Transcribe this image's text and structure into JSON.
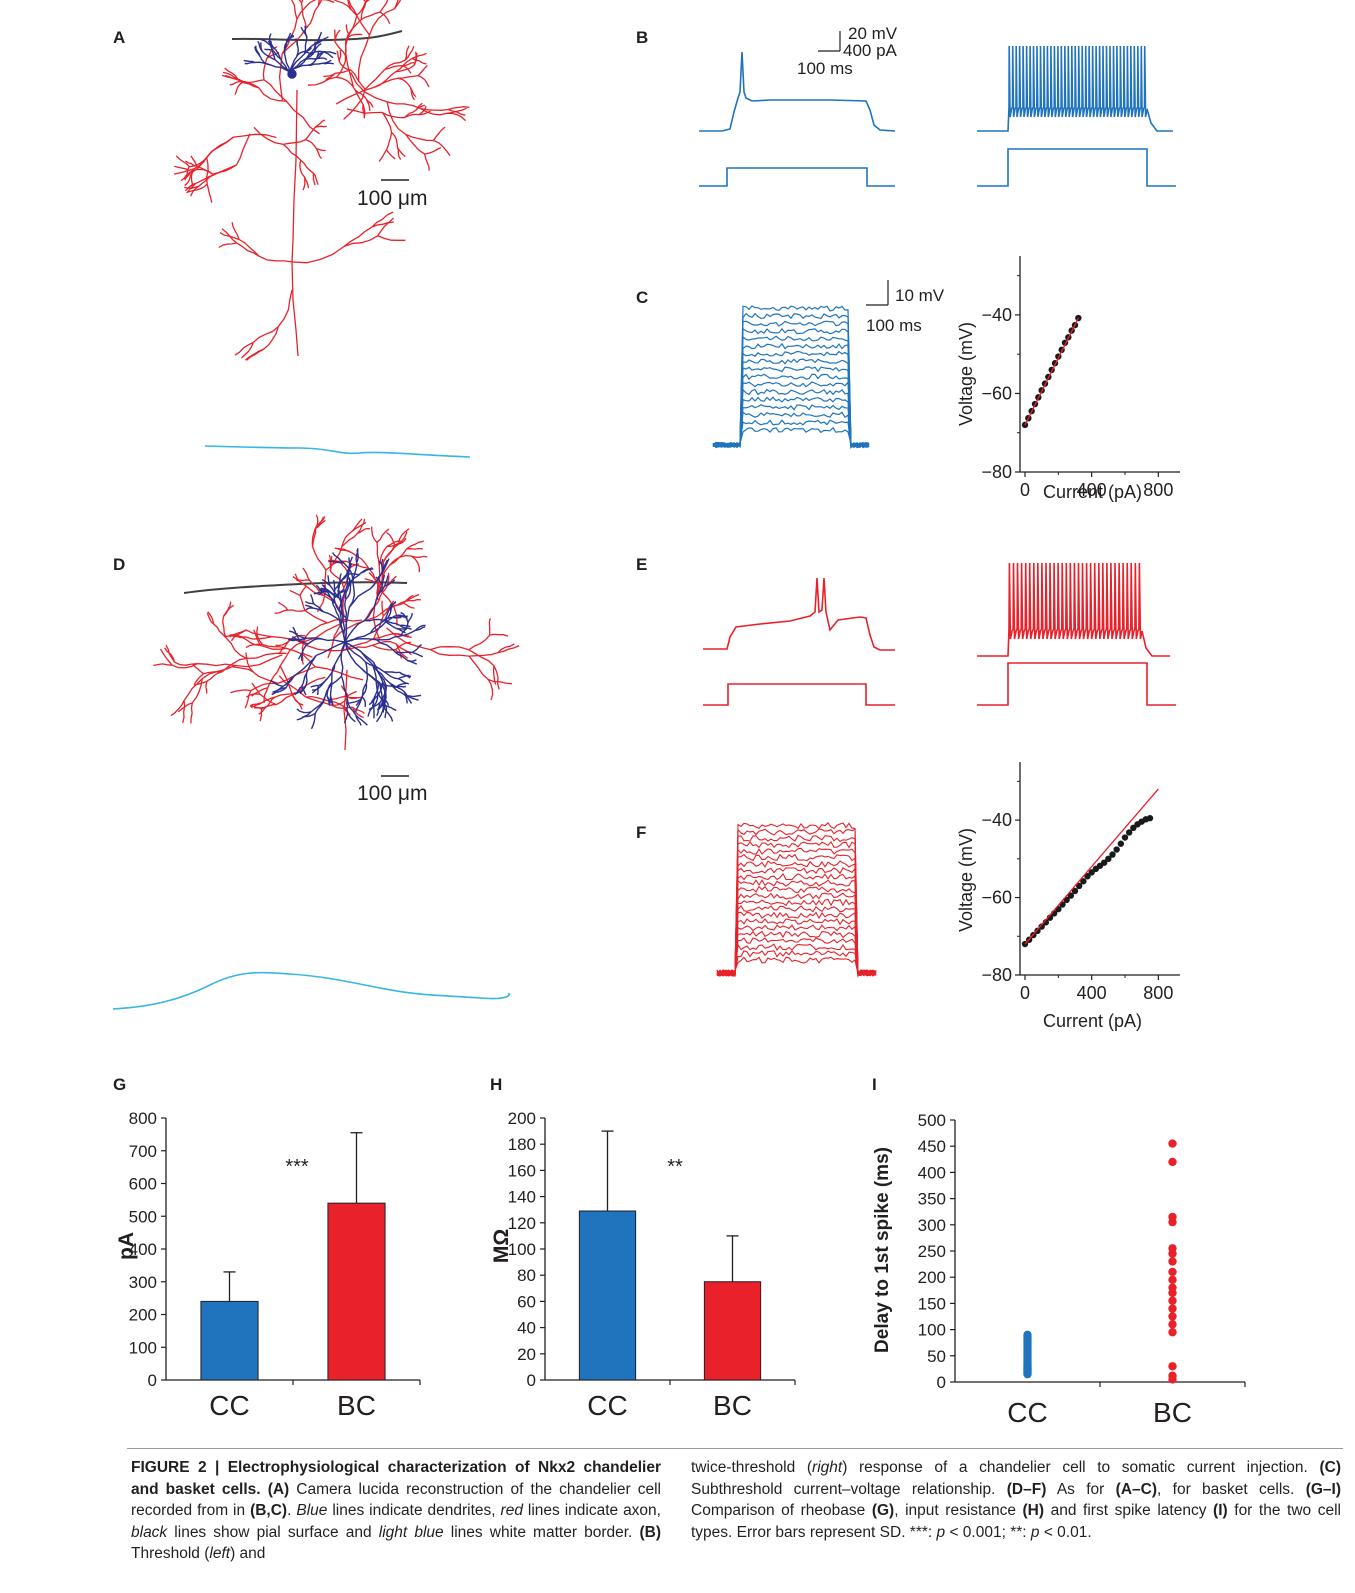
{
  "panel_labels": {
    "A": "A",
    "B": "B",
    "C": "C",
    "D": "D",
    "E": "E",
    "F": "F",
    "G": "G",
    "H": "H",
    "I": "I"
  },
  "scale_bars": {
    "anatomy_A": "100 μm",
    "anatomy_D": "100 μm",
    "trace_B_v": "20 mV",
    "trace_B_i": "400 pA",
    "trace_B_t": "100 ms",
    "trace_C_v": "10 mV",
    "trace_C_t": "100 ms"
  },
  "colors": {
    "dendrite": "#2b2f8f",
    "axon": "#e8212a",
    "pia": "#404040",
    "white_matter": "#35b6e6",
    "chandelier": "#1f74bd",
    "basket": "#e8212a",
    "fit_line": "#e8212a",
    "iv_points": "#1a1a1a"
  },
  "chart_data": [
    {
      "id": "C-iv",
      "type": "scatter",
      "title": "",
      "xlabel": "Current (pA)",
      "ylabel": "Voltage (mV)",
      "xlim": [
        -30,
        930
      ],
      "ylim": [
        -80,
        -25
      ],
      "xticks": [
        "0",
        "400",
        "800"
      ],
      "yticks": [
        "−40",
        "−60",
        "−80"
      ],
      "points_color": "#1a1a1a",
      "x": [
        0,
        20,
        40,
        60,
        80,
        100,
        120,
        140,
        160,
        180,
        200,
        220,
        240,
        260,
        280,
        300,
        320
      ],
      "y": [
        -68.0,
        -66.3,
        -64.5,
        -62.7,
        -61.0,
        -59.2,
        -57.5,
        -55.8,
        -54.0,
        -52.3,
        -50.6,
        -48.9,
        -47.1,
        -45.7,
        -44.0,
        -42.6,
        -40.8
      ],
      "fit": {
        "x": [
          0,
          320
        ],
        "y": [
          -68.0,
          -40.8
        ]
      }
    },
    {
      "id": "F-iv",
      "type": "scatter",
      "title": "",
      "xlabel": "Current (pA)",
      "ylabel": "Voltage (mV)",
      "xlim": [
        -30,
        930
      ],
      "ylim": [
        -80,
        -25
      ],
      "xticks": [
        "0",
        "400",
        "800"
      ],
      "yticks": [
        "−40",
        "−60",
        "−80"
      ],
      "points_color": "#1a1a1a",
      "x": [
        0,
        25,
        50,
        75,
        100,
        125,
        150,
        175,
        200,
        225,
        250,
        275,
        300,
        325,
        350,
        375,
        400,
        425,
        450,
        475,
        500,
        525,
        550,
        575,
        600,
        625,
        650,
        675,
        700,
        725,
        750
      ],
      "y": [
        -72.0,
        -70.9,
        -69.7,
        -68.6,
        -67.5,
        -66.4,
        -65.2,
        -64.1,
        -63.0,
        -61.8,
        -60.6,
        -59.5,
        -58.3,
        -57.0,
        -55.8,
        -54.5,
        -53.5,
        -52.6,
        -51.8,
        -51.0,
        -50.0,
        -48.9,
        -47.6,
        -46.1,
        -44.5,
        -43.2,
        -42.0,
        -41.1,
        -40.4,
        -39.8,
        -39.5
      ],
      "fit": {
        "x": [
          0,
          800
        ],
        "y": [
          -72.0,
          -32.0
        ]
      }
    },
    {
      "id": "G",
      "type": "bar",
      "title": "",
      "xlabel": "",
      "ylabel": "pA",
      "ylim": [
        0,
        800
      ],
      "yticks": [
        "0",
        "100",
        "200",
        "300",
        "400",
        "500",
        "600",
        "700",
        "800"
      ],
      "categories": [
        "CC",
        "BC"
      ],
      "values": [
        240,
        540
      ],
      "errors": [
        90,
        215
      ],
      "bar_colors": [
        "#1f74bd",
        "#e8212a"
      ],
      "annotation": "***"
    },
    {
      "id": "H",
      "type": "bar",
      "title": "",
      "xlabel": "",
      "ylabel": "MΩ",
      "ylim": [
        0,
        200
      ],
      "yticks": [
        "0",
        "20",
        "40",
        "60",
        "80",
        "100",
        "120",
        "140",
        "160",
        "180",
        "200"
      ],
      "categories": [
        "CC",
        "BC"
      ],
      "values": [
        129,
        75
      ],
      "errors": [
        61,
        35
      ],
      "bar_colors": [
        "#1f74bd",
        "#e8212a"
      ],
      "annotation": "**"
    },
    {
      "id": "I",
      "type": "scatter",
      "title": "",
      "xlabel": "",
      "ylabel": "Delay to 1st spike (ms)",
      "ylim": [
        0,
        500
      ],
      "yticks": [
        "0",
        "50",
        "100",
        "150",
        "200",
        "250",
        "300",
        "350",
        "400",
        "450",
        "500"
      ],
      "categories": [
        "CC",
        "BC"
      ],
      "series": [
        {
          "category": "CC",
          "color": "#1f74bd",
          "values": [
            15,
            18,
            20,
            22,
            24,
            26,
            28,
            30,
            33,
            36,
            40,
            45,
            50,
            55,
            60,
            65,
            70,
            75,
            80,
            85,
            90
          ]
        },
        {
          "category": "BC",
          "color": "#e8212a",
          "values": [
            5,
            12,
            30,
            95,
            110,
            125,
            140,
            155,
            170,
            180,
            195,
            210,
            230,
            245,
            255,
            305,
            315,
            420,
            455
          ]
        }
      ]
    }
  ],
  "caption": {
    "left": {
      "label": "FIGURE 2 | Electrophysiological characterization of Nkx2 chandelier and basket cells.",
      "a_ref": "(A)",
      "a_text": " Camera lucida reconstruction of the chandelier cell recorded from in ",
      "a_ref2": "(B,C)",
      "a_text2": ". ",
      "blue": "Blue",
      "t1": " lines indicate dendrites, ",
      "red": "red",
      "t2": " lines indicate axon, ",
      "black": "black",
      "t3": " lines show pial surface and ",
      "lightblue": "light blue",
      "t4": " lines white matter border. ",
      "b_ref": "(B)",
      "t5": " Threshold (",
      "left_word": "left",
      "t6": ") and"
    },
    "right": {
      "t1": "twice-threshold (",
      "right_word": "right",
      "t2": ") response of a chandelier cell to somatic current injection. ",
      "c_ref": "(C)",
      "t3": " Subthreshold current–voltage relationship. ",
      "df_ref": "(D–F)",
      "t4": " As for ",
      "ac_ref": "(A–C)",
      "t5": ", for basket cells. ",
      "gi_ref": "(G–I)",
      "t6": " Comparison of rheobase ",
      "g_ref": "(G)",
      "t7": ", input resistance ",
      "h_ref": "(H)",
      "t8": " and first spike latency ",
      "i_ref": "(I)",
      "t9": " for the two cell types. Error bars represent SD. ***: ",
      "p1": "p",
      "t10": " < 0.001; **: ",
      "p2": "p",
      "t11": " < 0.01."
    }
  }
}
